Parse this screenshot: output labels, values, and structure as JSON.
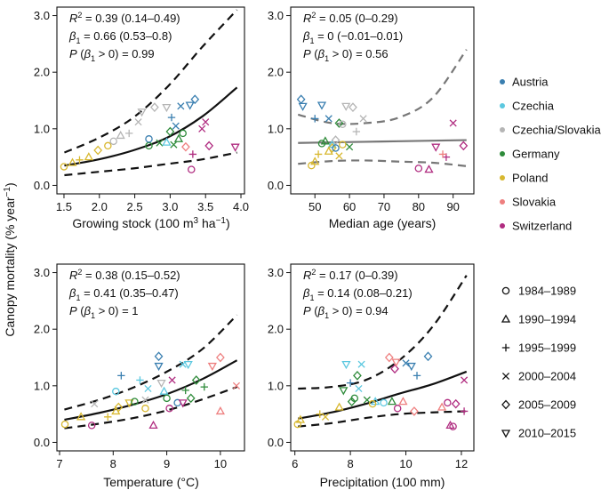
{
  "figure": {
    "ylabel_main": "Canopy mortality (% year",
    "ylabel_sup": "−1",
    "ylabel_end": ")"
  },
  "legend_countries": [
    {
      "name": "Austria",
      "color": "#3a7fb0"
    },
    {
      "name": "Czechia",
      "color": "#5cc8e0"
    },
    {
      "name": "Czechia/Slovakia",
      "color": "#b5b5b5"
    },
    {
      "name": "Germany",
      "color": "#2e8b3a"
    },
    {
      "name": "Poland",
      "color": "#d8b830"
    },
    {
      "name": "Slovakia",
      "color": "#ee7f7f"
    },
    {
      "name": "Switzerland",
      "color": "#b02c80"
    }
  ],
  "legend_periods": [
    {
      "label": "1984–1989",
      "marker": "circle"
    },
    {
      "label": "1990–1994",
      "marker": "triangle-up"
    },
    {
      "label": "1995–1999",
      "marker": "plus"
    },
    {
      "label": "2000–2004",
      "marker": "cross"
    },
    {
      "label": "2005–2009",
      "marker": "diamond"
    },
    {
      "label": "2010–2015",
      "marker": "triangle-down"
    }
  ],
  "chart_data": [
    {
      "id": "growing-stock",
      "type": "scatter",
      "xlabel_html": [
        "Growing stock (100 m",
        "3",
        " ha",
        "−1",
        ")"
      ],
      "xlim": [
        1.4,
        4.05
      ],
      "ylim": [
        -0.15,
        3.15
      ],
      "xticks": [
        "1.5",
        "2.0",
        "2.5",
        "3.0",
        "3.5",
        "4.0"
      ],
      "xtick_values": [
        1.5,
        2.0,
        2.5,
        3.0,
        3.5,
        4.0
      ],
      "yticks": [
        "0.0",
        "1.0",
        "2.0",
        "3.0"
      ],
      "ytick_values": [
        0,
        1,
        2,
        3
      ],
      "stats": {
        "r2": "0.39 (0.14–0.49)",
        "beta": "0.66 (0.53–0.8)",
        "p": "0.99"
      },
      "fit": {
        "mid": [
          0.35,
          0.46,
          0.62,
          0.85,
          1.22,
          1.73
        ],
        "lo": [
          0.18,
          0.24,
          0.3,
          0.38,
          0.46,
          0.58
        ],
        "hi": [
          0.58,
          0.84,
          1.2,
          1.75,
          2.45,
          3.1
        ],
        "mid_style": "solid-black",
        "band_style": "dashed-black"
      },
      "points": [
        {
          "x": 1.5,
          "y": 0.33,
          "c": 4,
          "m": 0
        },
        {
          "x": 1.62,
          "y": 0.4,
          "c": 4,
          "m": 1
        },
        {
          "x": 1.72,
          "y": 0.45,
          "c": 4,
          "m": 2
        },
        {
          "x": 1.85,
          "y": 0.5,
          "c": 4,
          "m": 1
        },
        {
          "x": 1.98,
          "y": 0.62,
          "c": 4,
          "m": 4
        },
        {
          "x": 2.12,
          "y": 0.7,
          "c": 4,
          "m": 0
        },
        {
          "x": 2.2,
          "y": 0.78,
          "c": 2,
          "m": 0
        },
        {
          "x": 2.3,
          "y": 0.88,
          "c": 2,
          "m": 1
        },
        {
          "x": 2.42,
          "y": 0.92,
          "c": 2,
          "m": 2
        },
        {
          "x": 2.55,
          "y": 1.12,
          "c": 2,
          "m": 3
        },
        {
          "x": 2.6,
          "y": 1.3,
          "c": 2,
          "m": 5
        },
        {
          "x": 2.78,
          "y": 1.38,
          "c": 2,
          "m": 4
        },
        {
          "x": 2.7,
          "y": 0.7,
          "c": 3,
          "m": 0
        },
        {
          "x": 2.85,
          "y": 0.75,
          "c": 3,
          "m": 3
        },
        {
          "x": 3.0,
          "y": 0.95,
          "c": 3,
          "m": 4
        },
        {
          "x": 3.05,
          "y": 0.72,
          "c": 3,
          "m": 3
        },
        {
          "x": 2.95,
          "y": 1.38,
          "c": 2,
          "m": 5
        },
        {
          "x": 3.02,
          "y": 1.2,
          "c": 0,
          "m": 2
        },
        {
          "x": 3.08,
          "y": 1.05,
          "c": 0,
          "m": 3
        },
        {
          "x": 3.15,
          "y": 1.4,
          "c": 0,
          "m": 3
        },
        {
          "x": 3.28,
          "y": 1.42,
          "c": 0,
          "m": 5
        },
        {
          "x": 3.35,
          "y": 1.52,
          "c": 0,
          "m": 4
        },
        {
          "x": 2.95,
          "y": 0.76,
          "c": 1,
          "m": 1
        },
        {
          "x": 3.12,
          "y": 0.82,
          "c": 3,
          "m": 1
        },
        {
          "x": 3.22,
          "y": 0.68,
          "c": 5,
          "m": 4
        },
        {
          "x": 3.32,
          "y": 0.55,
          "c": 6,
          "m": 2
        },
        {
          "x": 3.3,
          "y": 0.28,
          "c": 6,
          "m": 0
        },
        {
          "x": 3.45,
          "y": 1.0,
          "c": 6,
          "m": 3
        },
        {
          "x": 3.5,
          "y": 1.12,
          "c": 6,
          "m": 3
        },
        {
          "x": 3.55,
          "y": 0.7,
          "c": 6,
          "m": 4
        },
        {
          "x": 3.92,
          "y": 0.68,
          "c": 6,
          "m": 5
        },
        {
          "x": 2.7,
          "y": 0.82,
          "c": 0,
          "m": 0
        },
        {
          "x": 3.18,
          "y": 0.92,
          "c": 3,
          "m": 0
        }
      ]
    },
    {
      "id": "median-age",
      "type": "scatter",
      "xlabel_html": [
        "Median age (years)"
      ],
      "xlim": [
        43,
        96
      ],
      "ylim": [
        -0.15,
        3.15
      ],
      "xticks": [
        "50",
        "60",
        "70",
        "80",
        "90"
      ],
      "xtick_values": [
        50,
        60,
        70,
        80,
        90
      ],
      "yticks": [
        "0.0",
        "1.0",
        "2.0",
        "3.0"
      ],
      "ytick_values": [
        0,
        1,
        2,
        3
      ],
      "stats": {
        "r2": "0.05 (0–0.29)",
        "beta": "0 (−0.01–0.01)",
        "p": "0.56"
      },
      "fit": {
        "mid": [
          0.75,
          0.76,
          0.77,
          0.78,
          0.79,
          0.8
        ],
        "lo": [
          0.38,
          0.43,
          0.44,
          0.42,
          0.4,
          0.34
        ],
        "hi": [
          1.25,
          1.1,
          1.1,
          1.2,
          1.55,
          2.4
        ],
        "mid_style": "solid-gray",
        "band_style": "dashed-gray"
      },
      "points": [
        {
          "x": 46,
          "y": 1.52,
          "c": 0,
          "m": 4
        },
        {
          "x": 46.5,
          "y": 1.4,
          "c": 0,
          "m": 5
        },
        {
          "x": 50,
          "y": 1.18,
          "c": 0,
          "m": 2
        },
        {
          "x": 52,
          "y": 1.42,
          "c": 0,
          "m": 5
        },
        {
          "x": 54,
          "y": 1.18,
          "c": 0,
          "m": 3
        },
        {
          "x": 52,
          "y": 0.74,
          "c": 3,
          "m": 0
        },
        {
          "x": 53,
          "y": 0.78,
          "c": 3,
          "m": 1
        },
        {
          "x": 55,
          "y": 0.72,
          "c": 1,
          "m": 1
        },
        {
          "x": 56,
          "y": 0.8,
          "c": 2,
          "m": 4
        },
        {
          "x": 57,
          "y": 1.1,
          "c": 3,
          "m": 4
        },
        {
          "x": 58,
          "y": 1.08,
          "c": 2,
          "m": 0
        },
        {
          "x": 59,
          "y": 1.4,
          "c": 2,
          "m": 5
        },
        {
          "x": 61,
          "y": 1.38,
          "c": 2,
          "m": 4
        },
        {
          "x": 62,
          "y": 0.95,
          "c": 2,
          "m": 2
        },
        {
          "x": 64,
          "y": 1.18,
          "c": 2,
          "m": 3
        },
        {
          "x": 49,
          "y": 0.35,
          "c": 4,
          "m": 0
        },
        {
          "x": 50,
          "y": 0.42,
          "c": 4,
          "m": 1
        },
        {
          "x": 51,
          "y": 0.55,
          "c": 4,
          "m": 2
        },
        {
          "x": 54,
          "y": 0.6,
          "c": 4,
          "m": 1
        },
        {
          "x": 55,
          "y": 0.66,
          "c": 4,
          "m": 4
        },
        {
          "x": 57,
          "y": 0.52,
          "c": 4,
          "m": 3
        },
        {
          "x": 58,
          "y": 0.72,
          "c": 4,
          "m": 0
        },
        {
          "x": 56,
          "y": 0.66,
          "c": 0,
          "m": 0
        },
        {
          "x": 60,
          "y": 0.68,
          "c": 3,
          "m": 3
        },
        {
          "x": 80,
          "y": 0.3,
          "c": 6,
          "m": 0
        },
        {
          "x": 83,
          "y": 0.28,
          "c": 6,
          "m": 1
        },
        {
          "x": 85,
          "y": 0.68,
          "c": 6,
          "m": 5
        },
        {
          "x": 88,
          "y": 0.5,
          "c": 6,
          "m": 2
        },
        {
          "x": 90,
          "y": 1.1,
          "c": 6,
          "m": 3
        },
        {
          "x": 93,
          "y": 0.7,
          "c": 6,
          "m": 4
        },
        {
          "x": 87,
          "y": 0.55,
          "c": 5,
          "m": 2
        }
      ]
    },
    {
      "id": "temperature",
      "type": "scatter",
      "xlabel_html": [
        "Temperature (°C)"
      ],
      "xlim": [
        6.95,
        10.45
      ],
      "ylim": [
        -0.15,
        3.15
      ],
      "xticks": [
        "7",
        "8",
        "9",
        "10"
      ],
      "xtick_values": [
        7,
        8,
        9,
        10
      ],
      "yticks": [
        "0.0",
        "1.0",
        "2.0",
        "3.0"
      ],
      "ytick_values": [
        0,
        1,
        2,
        3
      ],
      "stats": {
        "r2": "0.38 (0.15–0.52)",
        "beta": "0.41 (0.35–0.47)",
        "p": "1"
      },
      "fit": {
        "mid": [
          0.4,
          0.52,
          0.67,
          0.86,
          1.12,
          1.45
        ],
        "lo": [
          0.25,
          0.33,
          0.43,
          0.57,
          0.76,
          0.98
        ],
        "hi": [
          0.58,
          0.75,
          0.97,
          1.26,
          1.65,
          2.25
        ],
        "mid_style": "solid-black",
        "band_style": "dashed-black"
      },
      "points": [
        {
          "x": 7.1,
          "y": 0.32,
          "c": 4,
          "m": 0
        },
        {
          "x": 7.4,
          "y": 0.45,
          "c": 4,
          "m": 1
        },
        {
          "x": 7.6,
          "y": 0.3,
          "c": 6,
          "m": 0
        },
        {
          "x": 7.65,
          "y": 0.68,
          "c": 2,
          "m": 3
        },
        {
          "x": 7.9,
          "y": 0.45,
          "c": 4,
          "m": 2
        },
        {
          "x": 8.05,
          "y": 0.55,
          "c": 4,
          "m": 1
        },
        {
          "x": 8.1,
          "y": 0.62,
          "c": 4,
          "m": 4
        },
        {
          "x": 8.05,
          "y": 0.9,
          "c": 1,
          "m": 0
        },
        {
          "x": 8.15,
          "y": 1.18,
          "c": 0,
          "m": 2
        },
        {
          "x": 8.3,
          "y": 0.7,
          "c": 4,
          "m": 5
        },
        {
          "x": 8.4,
          "y": 0.72,
          "c": 3,
          "m": 0
        },
        {
          "x": 8.5,
          "y": 1.1,
          "c": 1,
          "m": 2
        },
        {
          "x": 8.6,
          "y": 0.75,
          "c": 2,
          "m": 3
        },
        {
          "x": 8.65,
          "y": 0.95,
          "c": 1,
          "m": 3
        },
        {
          "x": 8.75,
          "y": 0.3,
          "c": 6,
          "m": 1
        },
        {
          "x": 8.85,
          "y": 1.52,
          "c": 0,
          "m": 4
        },
        {
          "x": 8.85,
          "y": 1.35,
          "c": 0,
          "m": 5
        },
        {
          "x": 8.9,
          "y": 1.05,
          "c": 2,
          "m": 5
        },
        {
          "x": 8.95,
          "y": 0.9,
          "c": 1,
          "m": 1
        },
        {
          "x": 9.0,
          "y": 0.78,
          "c": 3,
          "m": 0
        },
        {
          "x": 9.05,
          "y": 0.6,
          "c": 6,
          "m": 0
        },
        {
          "x": 9.1,
          "y": 1.1,
          "c": 6,
          "m": 3
        },
        {
          "x": 9.2,
          "y": 0.7,
          "c": 0,
          "m": 0
        },
        {
          "x": 9.3,
          "y": 1.38,
          "c": 1,
          "m": 3
        },
        {
          "x": 9.35,
          "y": 0.92,
          "c": 3,
          "m": 2
        },
        {
          "x": 9.4,
          "y": 1.38,
          "c": 1,
          "m": 5
        },
        {
          "x": 9.45,
          "y": 0.78,
          "c": 3,
          "m": 4
        },
        {
          "x": 9.55,
          "y": 1.1,
          "c": 3,
          "m": 4
        },
        {
          "x": 9.3,
          "y": 0.7,
          "c": 6,
          "m": 5
        },
        {
          "x": 9.7,
          "y": 0.98,
          "c": 3,
          "m": 2
        },
        {
          "x": 9.85,
          "y": 1.35,
          "c": 5,
          "m": 5
        },
        {
          "x": 10.0,
          "y": 1.5,
          "c": 5,
          "m": 4
        },
        {
          "x": 10.0,
          "y": 0.55,
          "c": 5,
          "m": 1
        },
        {
          "x": 10.3,
          "y": 1.0,
          "c": 5,
          "m": 3
        },
        {
          "x": 8.6,
          "y": 0.6,
          "c": 4,
          "m": 0
        }
      ]
    },
    {
      "id": "precipitation",
      "type": "scatter",
      "xlabel_html": [
        "Precipitation (100 mm)"
      ],
      "xlim": [
        5.85,
        12.45
      ],
      "ylim": [
        -0.15,
        3.15
      ],
      "xticks": [
        "6",
        "8",
        "10",
        "12"
      ],
      "xtick_values": [
        6,
        8,
        10,
        12
      ],
      "yticks": [
        "0.0",
        "1.0",
        "2.0",
        "3.0"
      ],
      "ytick_values": [
        0,
        1,
        2,
        3
      ],
      "stats": {
        "r2": "0.17 (0–0.39)",
        "beta": "0.14 (0.08–0.21)",
        "p": "0.94"
      },
      "fit": {
        "mid": [
          0.42,
          0.53,
          0.68,
          0.86,
          1.03,
          1.25
        ],
        "lo": [
          0.28,
          0.34,
          0.43,
          0.5,
          0.53,
          0.55
        ],
        "hi": [
          0.95,
          0.98,
          1.1,
          1.45,
          2.05,
          2.95
        ],
        "mid_style": "solid-black",
        "band_style": "dashed-black"
      },
      "points": [
        {
          "x": 6.1,
          "y": 0.32,
          "c": 4,
          "m": 0
        },
        {
          "x": 6.2,
          "y": 0.4,
          "c": 4,
          "m": 1
        },
        {
          "x": 6.9,
          "y": 0.5,
          "c": 4,
          "m": 2
        },
        {
          "x": 7.1,
          "y": 0.45,
          "c": 4,
          "m": 3
        },
        {
          "x": 7.6,
          "y": 0.62,
          "c": 4,
          "m": 1
        },
        {
          "x": 7.75,
          "y": 0.92,
          "c": 3,
          "m": 5
        },
        {
          "x": 7.85,
          "y": 1.38,
          "c": 1,
          "m": 5
        },
        {
          "x": 8.0,
          "y": 1.05,
          "c": 0,
          "m": 2
        },
        {
          "x": 8.05,
          "y": 0.72,
          "c": 3,
          "m": 4
        },
        {
          "x": 8.15,
          "y": 0.78,
          "c": 3,
          "m": 0
        },
        {
          "x": 8.25,
          "y": 1.18,
          "c": 3,
          "m": 4
        },
        {
          "x": 8.3,
          "y": 0.95,
          "c": 1,
          "m": 3
        },
        {
          "x": 8.4,
          "y": 1.38,
          "c": 1,
          "m": 3
        },
        {
          "x": 8.6,
          "y": 0.75,
          "c": 3,
          "m": 3
        },
        {
          "x": 8.9,
          "y": 0.72,
          "c": 1,
          "m": 1
        },
        {
          "x": 8.8,
          "y": 0.68,
          "c": 4,
          "m": 0
        },
        {
          "x": 9.2,
          "y": 0.7,
          "c": 1,
          "m": 0
        },
        {
          "x": 9.4,
          "y": 1.5,
          "c": 5,
          "m": 4
        },
        {
          "x": 9.5,
          "y": 0.72,
          "c": 3,
          "m": 1
        },
        {
          "x": 9.6,
          "y": 1.3,
          "c": 6,
          "m": 4
        },
        {
          "x": 9.65,
          "y": 1.42,
          "c": 5,
          "m": 5
        },
        {
          "x": 9.7,
          "y": 0.6,
          "c": 6,
          "m": 0
        },
        {
          "x": 9.9,
          "y": 0.72,
          "c": 5,
          "m": 1
        },
        {
          "x": 10.0,
          "y": 1.4,
          "c": 0,
          "m": 3
        },
        {
          "x": 10.2,
          "y": 1.35,
          "c": 0,
          "m": 5
        },
        {
          "x": 10.4,
          "y": 1.18,
          "c": 0,
          "m": 2
        },
        {
          "x": 10.3,
          "y": 0.55,
          "c": 5,
          "m": 4
        },
        {
          "x": 10.8,
          "y": 1.52,
          "c": 0,
          "m": 4
        },
        {
          "x": 11.3,
          "y": 0.62,
          "c": 5,
          "m": 1
        },
        {
          "x": 11.5,
          "y": 0.7,
          "c": 6,
          "m": 0
        },
        {
          "x": 11.6,
          "y": 0.3,
          "c": 6,
          "m": 1
        },
        {
          "x": 11.7,
          "y": 0.28,
          "c": 6,
          "m": 0
        },
        {
          "x": 11.8,
          "y": 0.68,
          "c": 6,
          "m": 4
        },
        {
          "x": 12.1,
          "y": 1.1,
          "c": 6,
          "m": 3
        },
        {
          "x": 12.1,
          "y": 0.55,
          "c": 6,
          "m": 2
        }
      ]
    }
  ]
}
